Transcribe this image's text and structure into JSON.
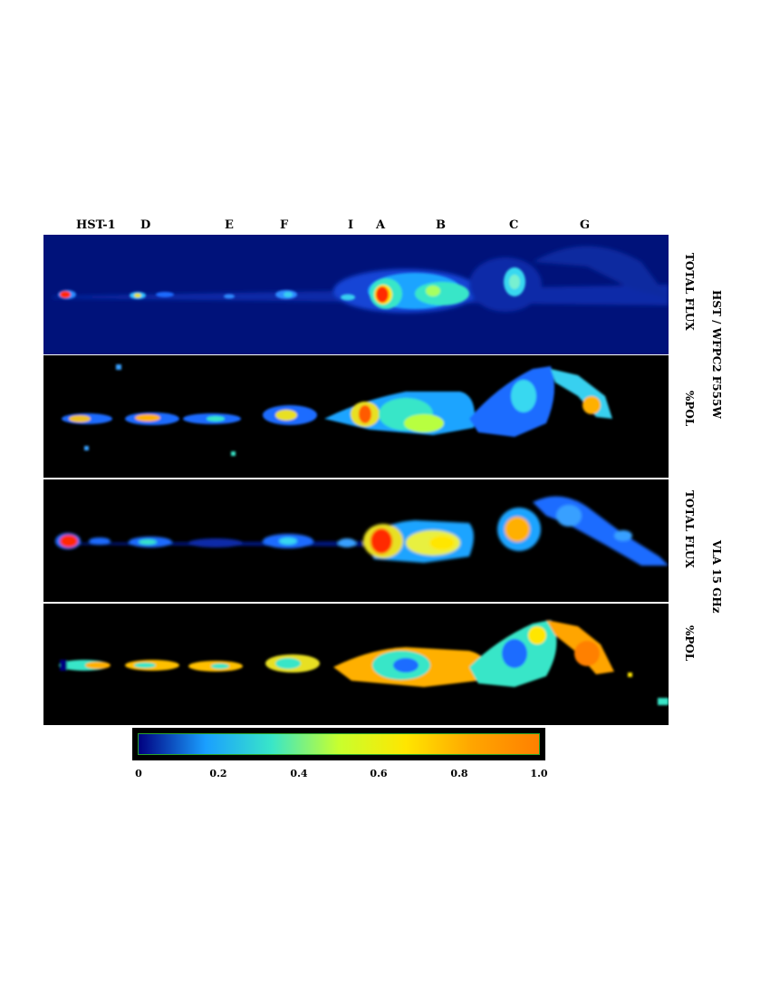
{
  "knots": {
    "hst1": "HST-1",
    "d": "D",
    "e": "E",
    "f": "F",
    "i": "I",
    "a": "A",
    "b": "B",
    "c": "C",
    "g": "G"
  },
  "panel_labels": {
    "hst_total_flux": "TOTAL FLUX",
    "hst_pol": "%POL",
    "vla_total_flux": "TOTAL FLUX",
    "vla_pol": "%POL"
  },
  "instrument_labels": {
    "hst": "HST / WFPC2 F555W",
    "vla": "VLA 15 GHz"
  },
  "colorbar": {
    "ticks": [
      "0",
      "0.2",
      "0.4",
      "0.6",
      "0.8",
      "1.0"
    ],
    "stops": [
      "#000080",
      "#1a9fff",
      "#39e6c8",
      "#c8ff2e",
      "#ffe600",
      "#ffa500",
      "#ff8000"
    ]
  },
  "colors": {
    "background": "#ffffff",
    "panel_background": "#000000",
    "hst_flux_background": "#00127a",
    "colorbar_border": "#29a329"
  }
}
